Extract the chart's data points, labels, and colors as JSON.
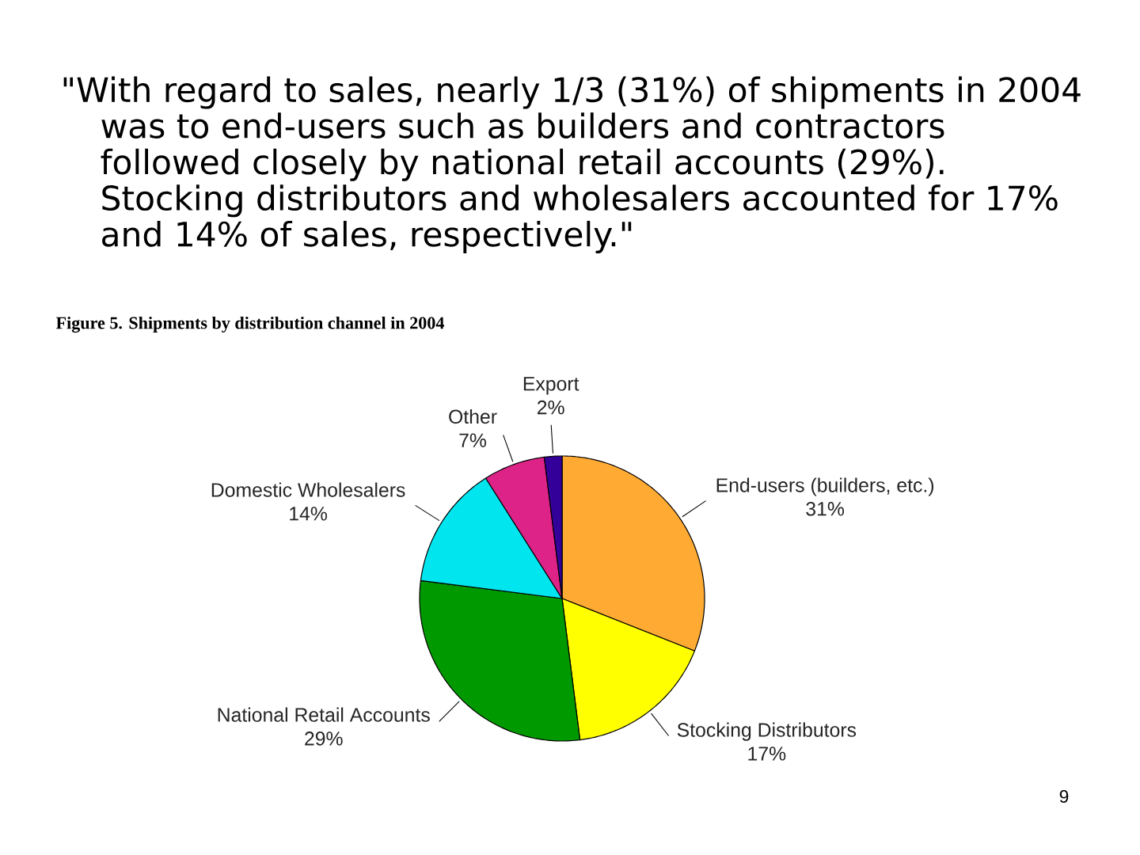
{
  "chart_data": {
    "type": "pie",
    "title": "Figure 5. Shipments by distribution channel in 2004",
    "categories": [
      "End-users (builders, etc.)",
      "Stocking Distributors",
      "National Retail Accounts",
      "Domestic Wholesalers",
      "Other",
      "Export"
    ],
    "values": [
      31,
      17,
      29,
      14,
      7,
      2
    ],
    "colors": [
      "#ffaa33",
      "#ffff00",
      "#009900",
      "#00e5ee",
      "#dd2288",
      "#330099"
    ],
    "value_labels": [
      "31%",
      "17%",
      "29%",
      "14%",
      "7%",
      "2%"
    ],
    "annotations": [
      "\"With regard to sales, nearly 1/3 (31%) of shipments in 2004 was to end-users such as builders and contractors followed closely by national retail accounts (29%). Stocking distributors and wholesalers accounted for 17% and 14% of sales, respectively.\"",
      "9"
    ]
  }
}
